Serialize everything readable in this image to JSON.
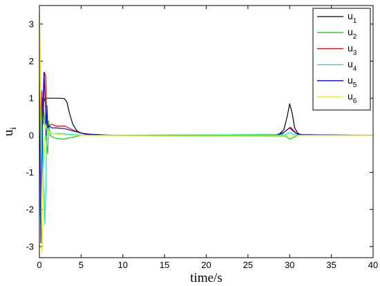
{
  "chart_data": {
    "type": "line",
    "title": "",
    "xlabel": "time/s",
    "ylabel": {
      "base": "u",
      "sub": "i"
    },
    "xlim": [
      0,
      40
    ],
    "ylim": [
      -3.3,
      3.5
    ],
    "xticks": [
      "0",
      "5",
      "10",
      "15",
      "20",
      "25",
      "30",
      "35",
      "40"
    ],
    "yticks": [
      "-3",
      "-2",
      "-1",
      "0",
      "1",
      "2",
      "3"
    ],
    "grid": false,
    "legend_position": "top-right",
    "series": [
      {
        "name": "u",
        "sub": "1",
        "color": "#000000",
        "points": [
          [
            0,
            0
          ],
          [
            0.05,
            2.6
          ],
          [
            0.1,
            1.2
          ],
          [
            0.15,
            0.3
          ],
          [
            0.2,
            -0.8
          ],
          [
            0.25,
            -0.3
          ],
          [
            0.3,
            0.7
          ],
          [
            0.4,
            1.0
          ],
          [
            0.5,
            0.9
          ],
          [
            0.7,
            1.0
          ],
          [
            1.5,
            1.0
          ],
          [
            2.5,
            1.0
          ],
          [
            3.0,
            0.99
          ],
          [
            3.3,
            0.9
          ],
          [
            3.6,
            0.6
          ],
          [
            4.0,
            0.3
          ],
          [
            4.5,
            0.12
          ],
          [
            5.0,
            0.06
          ],
          [
            6.0,
            0.03
          ],
          [
            8.0,
            0.01
          ],
          [
            10.0,
            0.0
          ],
          [
            28.0,
            0.0
          ],
          [
            28.8,
            0.04
          ],
          [
            29.3,
            0.15
          ],
          [
            29.7,
            0.5
          ],
          [
            30.0,
            0.85
          ],
          [
            30.3,
            0.6
          ],
          [
            30.6,
            0.2
          ],
          [
            31.0,
            0.05
          ],
          [
            31.5,
            0.01
          ],
          [
            40,
            0.0
          ]
        ]
      },
      {
        "name": "u",
        "sub": "2",
        "color": "#00dd00",
        "points": [
          [
            0,
            0
          ],
          [
            0.05,
            0.8
          ],
          [
            0.1,
            -0.5
          ],
          [
            0.2,
            -0.8
          ],
          [
            0.3,
            0.6
          ],
          [
            0.4,
            0.9
          ],
          [
            0.6,
            0.5
          ],
          [
            0.8,
            -0.1
          ],
          [
            1.0,
            -0.5
          ],
          [
            1.1,
            0.4
          ],
          [
            1.3,
            0.0
          ],
          [
            1.6,
            -0.05
          ],
          [
            2.0,
            -0.08
          ],
          [
            2.5,
            -0.1
          ],
          [
            3.0,
            -0.1
          ],
          [
            4.0,
            -0.05
          ],
          [
            5.0,
            0.0
          ],
          [
            29.5,
            -0.02
          ],
          [
            30.0,
            -0.1
          ],
          [
            30.5,
            -0.05
          ],
          [
            31.0,
            0.0
          ],
          [
            40,
            0.0
          ]
        ]
      },
      {
        "name": "u",
        "sub": "3",
        "color": "#ee0000",
        "points": [
          [
            0,
            0
          ],
          [
            0.05,
            1.0
          ],
          [
            0.1,
            -0.6
          ],
          [
            0.2,
            0.5
          ],
          [
            0.3,
            1.2
          ],
          [
            0.45,
            0.3
          ],
          [
            0.6,
            1.7
          ],
          [
            0.75,
            1.6
          ],
          [
            0.9,
            0.5
          ],
          [
            1.0,
            0.25
          ],
          [
            1.5,
            0.3
          ],
          [
            2.0,
            0.25
          ],
          [
            3.0,
            0.25
          ],
          [
            3.5,
            0.2
          ],
          [
            4.5,
            0.1
          ],
          [
            5.5,
            0.03
          ],
          [
            7.0,
            0.0
          ],
          [
            29.0,
            0.02
          ],
          [
            29.7,
            0.15
          ],
          [
            30.1,
            0.22
          ],
          [
            30.5,
            0.12
          ],
          [
            31.0,
            0.02
          ],
          [
            40,
            0.0
          ]
        ]
      },
      {
        "name": "u",
        "sub": "4",
        "color": "#00e5e5",
        "points": [
          [
            0,
            0
          ],
          [
            0.05,
            -1.5
          ],
          [
            0.15,
            -2.4
          ],
          [
            0.25,
            -0.3
          ],
          [
            0.35,
            0.5
          ],
          [
            0.5,
            -1.0
          ],
          [
            0.65,
            -2.4
          ],
          [
            0.8,
            -1.2
          ],
          [
            0.9,
            0.3
          ],
          [
            1.0,
            0.1
          ],
          [
            1.5,
            0.05
          ],
          [
            2.5,
            0.05
          ],
          [
            4.0,
            0.02
          ],
          [
            6.0,
            0.0
          ],
          [
            29.5,
            0.02
          ],
          [
            30.0,
            0.08
          ],
          [
            30.5,
            0.02
          ],
          [
            40,
            0.0
          ]
        ]
      },
      {
        "name": "u",
        "sub": "5",
        "color": "#0000dd",
        "points": [
          [
            0,
            0
          ],
          [
            0.05,
            2.0
          ],
          [
            0.1,
            -0.5
          ],
          [
            0.18,
            -2.9
          ],
          [
            0.3,
            -1.0
          ],
          [
            0.4,
            0.5
          ],
          [
            0.55,
            1.7
          ],
          [
            0.7,
            1.0
          ],
          [
            0.8,
            0.0
          ],
          [
            0.9,
            0.8
          ],
          [
            1.0,
            0.2
          ],
          [
            1.2,
            0.25
          ],
          [
            1.5,
            0.2
          ],
          [
            2.0,
            0.2
          ],
          [
            3.0,
            0.18
          ],
          [
            4.0,
            0.12
          ],
          [
            5.0,
            0.06
          ],
          [
            6.0,
            0.02
          ],
          [
            8.0,
            0.0
          ],
          [
            28.5,
            0.0
          ],
          [
            29.3,
            0.08
          ],
          [
            30.0,
            0.2
          ],
          [
            30.5,
            0.1
          ],
          [
            31.0,
            0.02
          ],
          [
            40,
            0.0
          ]
        ]
      },
      {
        "name": "u",
        "sub": "6",
        "color": "#eeee00",
        "points": [
          [
            0,
            0
          ],
          [
            0.03,
            3.3
          ],
          [
            0.08,
            2.5
          ],
          [
            0.15,
            0.5
          ],
          [
            0.22,
            -1.2
          ],
          [
            0.3,
            -3.15
          ],
          [
            0.4,
            -2.5
          ],
          [
            0.5,
            -1.0
          ],
          [
            0.6,
            -0.5
          ],
          [
            0.75,
            0.3
          ],
          [
            0.9,
            0.15
          ],
          [
            1.0,
            0.1
          ],
          [
            1.5,
            0.05
          ],
          [
            2.5,
            0.02
          ],
          [
            4.0,
            0.0
          ],
          [
            40,
            0.0
          ]
        ]
      }
    ]
  }
}
